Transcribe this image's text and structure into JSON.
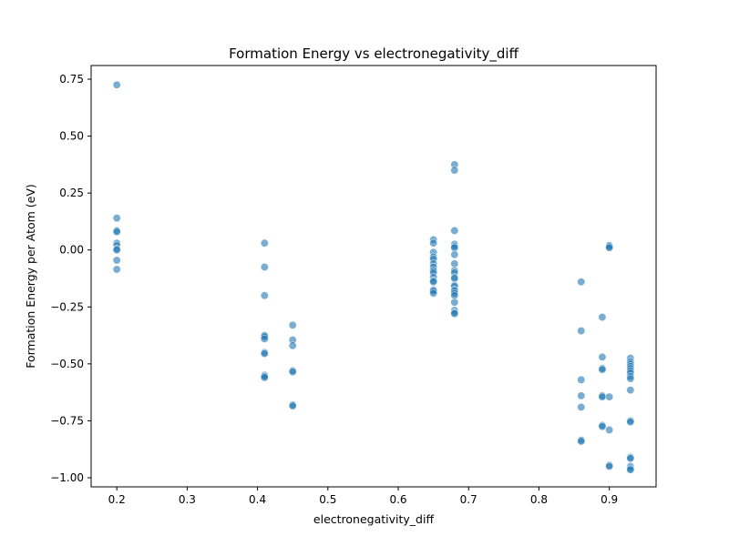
{
  "chart_data": {
    "type": "scatter",
    "title": "Formation Energy vs electronegativity_diff",
    "xlabel": "electronegativity_diff",
    "ylabel": "Formation Energy per Atom (eV)",
    "xlim": [
      0.1635,
      0.9665
    ],
    "ylim": [
      -1.04,
      0.81
    ],
    "xticks": [
      0.2,
      0.3,
      0.4,
      0.5,
      0.6,
      0.7,
      0.8,
      0.9
    ],
    "xtick_labels": [
      "0.2",
      "0.3",
      "0.4",
      "0.5",
      "0.6",
      "0.7",
      "0.8",
      "0.9"
    ],
    "yticks": [
      -1.0,
      -0.75,
      -0.5,
      -0.25,
      0.0,
      0.25,
      0.5,
      0.75
    ],
    "ytick_labels": [
      "−1.00",
      "−0.75",
      "−0.50",
      "−0.25",
      "0.00",
      "0.25",
      "0.50",
      "0.75"
    ],
    "grid": false,
    "marker_color": "#1f77b4",
    "marker_alpha": 0.6,
    "points": [
      [
        0.2,
        0.725
      ],
      [
        0.2,
        0.14
      ],
      [
        0.2,
        0.085
      ],
      [
        0.2,
        0.08
      ],
      [
        0.2,
        0.03
      ],
      [
        0.2,
        0.02
      ],
      [
        0.2,
        0.005
      ],
      [
        0.2,
        0.0
      ],
      [
        0.2,
        -0.045
      ],
      [
        0.2,
        -0.085
      ],
      [
        0.41,
        0.03
      ],
      [
        0.41,
        -0.075
      ],
      [
        0.41,
        -0.2
      ],
      [
        0.41,
        -0.375
      ],
      [
        0.41,
        -0.38
      ],
      [
        0.41,
        -0.39
      ],
      [
        0.41,
        -0.45
      ],
      [
        0.41,
        -0.455
      ],
      [
        0.41,
        -0.55
      ],
      [
        0.41,
        -0.555
      ],
      [
        0.41,
        -0.56
      ],
      [
        0.45,
        -0.33
      ],
      [
        0.45,
        -0.395
      ],
      [
        0.45,
        -0.42
      ],
      [
        0.45,
        -0.53
      ],
      [
        0.45,
        -0.535
      ],
      [
        0.45,
        -0.68
      ],
      [
        0.45,
        -0.685
      ],
      [
        0.65,
        0.045
      ],
      [
        0.65,
        0.03
      ],
      [
        0.65,
        -0.01
      ],
      [
        0.65,
        -0.03
      ],
      [
        0.65,
        -0.04
      ],
      [
        0.65,
        -0.06
      ],
      [
        0.65,
        -0.075
      ],
      [
        0.65,
        -0.09
      ],
      [
        0.65,
        -0.1
      ],
      [
        0.65,
        -0.12
      ],
      [
        0.65,
        -0.135
      ],
      [
        0.65,
        -0.14
      ],
      [
        0.65,
        -0.175
      ],
      [
        0.65,
        -0.18
      ],
      [
        0.65,
        -0.19
      ],
      [
        0.68,
        0.375
      ],
      [
        0.68,
        0.35
      ],
      [
        0.68,
        0.085
      ],
      [
        0.68,
        0.025
      ],
      [
        0.68,
        0.015
      ],
      [
        0.68,
        0.01
      ],
      [
        0.68,
        -0.02
      ],
      [
        0.68,
        -0.06
      ],
      [
        0.68,
        -0.09
      ],
      [
        0.68,
        -0.1
      ],
      [
        0.68,
        -0.12
      ],
      [
        0.68,
        -0.125
      ],
      [
        0.68,
        -0.155
      ],
      [
        0.68,
        -0.16
      ],
      [
        0.68,
        -0.175
      ],
      [
        0.68,
        -0.18
      ],
      [
        0.68,
        -0.19
      ],
      [
        0.68,
        -0.2
      ],
      [
        0.68,
        -0.23
      ],
      [
        0.68,
        -0.265
      ],
      [
        0.68,
        -0.275
      ],
      [
        0.68,
        -0.28
      ],
      [
        0.86,
        -0.14
      ],
      [
        0.86,
        -0.355
      ],
      [
        0.86,
        -0.57
      ],
      [
        0.86,
        -0.64
      ],
      [
        0.86,
        -0.69
      ],
      [
        0.86,
        -0.835
      ],
      [
        0.86,
        -0.84
      ],
      [
        0.89,
        -0.295
      ],
      [
        0.89,
        -0.47
      ],
      [
        0.89,
        -0.52
      ],
      [
        0.89,
        -0.525
      ],
      [
        0.89,
        -0.64
      ],
      [
        0.89,
        -0.645
      ],
      [
        0.89,
        -0.77
      ],
      [
        0.89,
        -0.775
      ],
      [
        0.9,
        0.02
      ],
      [
        0.9,
        0.015
      ],
      [
        0.9,
        0.01
      ],
      [
        0.9,
        -0.645
      ],
      [
        0.9,
        -0.79
      ],
      [
        0.9,
        -0.945
      ],
      [
        0.9,
        -0.95
      ],
      [
        0.93,
        -0.475
      ],
      [
        0.93,
        -0.49
      ],
      [
        0.93,
        -0.5
      ],
      [
        0.93,
        -0.51
      ],
      [
        0.93,
        -0.52
      ],
      [
        0.93,
        -0.53
      ],
      [
        0.93,
        -0.54
      ],
      [
        0.93,
        -0.555
      ],
      [
        0.93,
        -0.565
      ],
      [
        0.93,
        -0.615
      ],
      [
        0.93,
        -0.75
      ],
      [
        0.93,
        -0.755
      ],
      [
        0.93,
        -0.91
      ],
      [
        0.93,
        -0.915
      ],
      [
        0.93,
        -0.95
      ],
      [
        0.93,
        -0.96
      ],
      [
        0.93,
        -0.965
      ]
    ]
  }
}
